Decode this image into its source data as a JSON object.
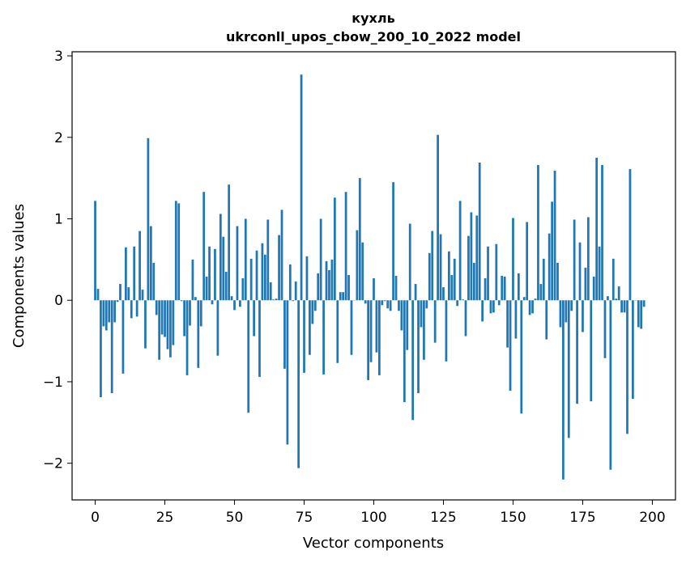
{
  "chart_data": {
    "type": "bar",
    "title": "кухль",
    "subtitle": "ukrconll_upos_cbow_200_10_2022 model",
    "xlabel": "Vector components",
    "ylabel": "Components values",
    "xlim": [
      -8.3,
      208.3
    ],
    "ylim": [
      -2.45,
      3.05
    ],
    "xticks": [
      0,
      25,
      50,
      75,
      100,
      125,
      150,
      175,
      200
    ],
    "xtick_labels": [
      "0",
      "25",
      "50",
      "75",
      "100",
      "125",
      "150",
      "175",
      "200"
    ],
    "yticks": [
      -2,
      -1,
      0,
      1,
      2,
      3
    ],
    "ytick_labels": [
      "−2",
      "−1",
      "0",
      "1",
      "2",
      "3"
    ],
    "color": "#1f77b4",
    "grid": false,
    "values": [
      1.22,
      0.14,
      -1.19,
      -0.32,
      -0.37,
      -0.27,
      -1.14,
      -0.27,
      -0.02,
      0.2,
      -0.9,
      0.65,
      0.16,
      -0.22,
      0.66,
      -0.2,
      0.85,
      0.13,
      -0.59,
      1.99,
      0.91,
      0.46,
      -0.18,
      -0.73,
      -0.42,
      -0.45,
      -0.6,
      -0.7,
      -0.55,
      1.22,
      1.19,
      -0.01,
      -0.44,
      -0.92,
      -0.31,
      0.5,
      0.04,
      -0.83,
      -0.32,
      1.33,
      0.29,
      0.66,
      -0.05,
      0.63,
      -0.68,
      1.06,
      0.78,
      0.35,
      1.42,
      0.05,
      -0.12,
      0.91,
      -0.08,
      0.27,
      1.0,
      -1.38,
      0.51,
      -0.44,
      0.61,
      -0.94,
      0.7,
      0.56,
      0.99,
      0.22,
      0.01,
      0.02,
      0.8,
      1.11,
      -0.84,
      -1.77,
      0.44,
      -0.01,
      0.23,
      -2.06,
      2.77,
      -0.89,
      0.54,
      -0.67,
      -0.29,
      -0.13,
      0.33,
      1.0,
      -0.91,
      0.48,
      0.37,
      0.5,
      1.26,
      -0.77,
      0.1,
      0.1,
      1.33,
      0.31,
      -0.67,
      0.0,
      0.86,
      1.5,
      0.71,
      -0.04,
      -0.98,
      -0.76,
      0.27,
      -0.64,
      -0.92,
      -0.06,
      -0.01,
      -0.1,
      -0.13,
      1.45,
      0.3,
      -0.13,
      -0.37,
      -1.25,
      -0.61,
      0.94,
      -1.47,
      0.2,
      -1.14,
      -0.33,
      -0.73,
      -0.1,
      0.58,
      0.85,
      -0.52,
      2.03,
      0.81,
      0.16,
      -0.75,
      0.6,
      0.31,
      0.51,
      -0.07,
      1.22,
      0.01,
      -0.44,
      0.79,
      1.08,
      0.46,
      1.04,
      1.69,
      -0.26,
      0.27,
      0.66,
      -0.16,
      -0.15,
      0.69,
      -0.06,
      0.3,
      0.29,
      -0.58,
      -1.11,
      1.01,
      -0.47,
      0.33,
      -1.39,
      0.04,
      0.96,
      -0.18,
      -0.16,
      0.02,
      1.66,
      0.2,
      0.51,
      -0.48,
      0.82,
      1.21,
      1.59,
      0.46,
      -0.33,
      -2.2,
      -0.27,
      -1.69,
      -0.13,
      0.99,
      -1.27,
      0.71,
      -0.39,
      0.4,
      1.02,
      -1.24,
      0.29,
      1.75,
      0.66,
      1.66,
      -0.71,
      0.05,
      -2.08,
      0.51,
      0.02,
      0.17,
      -0.15,
      -0.15,
      -1.64,
      1.61,
      -1.21,
      0.0,
      -0.33,
      -0.35,
      -0.08
    ]
  }
}
